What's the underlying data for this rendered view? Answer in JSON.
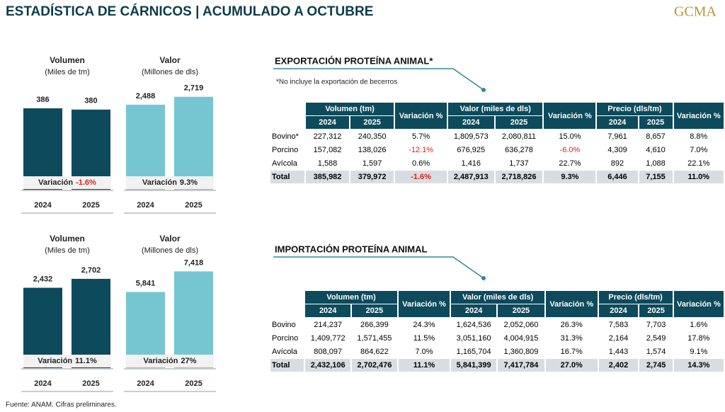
{
  "header": {
    "title": "ESTADÍSTICA DE CÁRNICOS | ACUMULADO A OCTUBRE",
    "logo": "GCMA"
  },
  "chart_data": [
    {
      "type": "bar",
      "title": "Volumen",
      "subtitle": "(Miles de tm)",
      "categories": [
        "2024",
        "2025"
      ],
      "values": [
        386,
        380
      ],
      "color": "#0d4a5c",
      "ylim": [
        0,
        470
      ],
      "note_label": "Variación",
      "note_value": "-1.6%"
    },
    {
      "type": "bar",
      "title": "Valor",
      "subtitle": "(Millones de dls)",
      "categories": [
        "2024",
        "2025"
      ],
      "values": [
        2488,
        2719
      ],
      "value_labels": [
        "2,488",
        "2,719"
      ],
      "color": "#76c6d1",
      "ylim": [
        0,
        2900
      ],
      "note_label": "Variación",
      "note_value": "9.3%"
    },
    {
      "type": "bar",
      "title": "Volumen",
      "subtitle": "(Miles de tm)",
      "categories": [
        "2024",
        "2025"
      ],
      "values": [
        2432,
        2702
      ],
      "value_labels": [
        "2,432",
        "2,702"
      ],
      "color": "#0d4a5c",
      "ylim": [
        0,
        3000
      ],
      "note_label": "Variación",
      "note_value": "11.1%"
    },
    {
      "type": "bar",
      "title": "Valor",
      "subtitle": "(Millones de dls)",
      "categories": [
        "2024",
        "2025"
      ],
      "values": [
        5841,
        7418
      ],
      "value_labels": [
        "5,841",
        "7,418"
      ],
      "color": "#76c6d1",
      "ylim": [
        0,
        7600
      ],
      "note_label": "Variación",
      "note_value": "27%"
    }
  ],
  "tables": [
    {
      "title": "EXPORTACIÓN PROTEÍNA ANIMAL*",
      "note": "*No incluye la exportación de becerros",
      "groups": [
        "Volumen (tm)",
        "Variación %",
        "Valor (miles de dls)",
        "Variación %",
        "Precio (dls/tm)",
        "Variación %"
      ],
      "years": [
        "2024",
        "2025"
      ],
      "rows": [
        [
          "Bovino*",
          "227,312",
          "240,350",
          "5.7%",
          "1,809,573",
          "2,080,811",
          "15.0%",
          "7,961",
          "8,657",
          "8.8%"
        ],
        [
          "Porcino",
          "157,082",
          "138,026",
          "-12.1%",
          "676,925",
          "636,278",
          "-6.0%",
          "4,309",
          "4,610",
          "7.0%"
        ],
        [
          "Avícola",
          "1,588",
          "1,597",
          "0.6%",
          "1,416",
          "1,737",
          "22.7%",
          "892",
          "1,088",
          "22.1%"
        ],
        [
          "Total",
          "385,982",
          "379,972",
          "-1.6%",
          "2,487,913",
          "2,718,826",
          "9.3%",
          "6,446",
          "7,155",
          "11.0%"
        ]
      ]
    },
    {
      "title": "IMPORTACIÓN PROTEÍNA ANIMAL",
      "groups": [
        "Volumen (tm)",
        "Variación %",
        "Valor (miles de dls)",
        "Variación %",
        "Precio (dls/tm)",
        "Variación %"
      ],
      "years": [
        "2024",
        "2025"
      ],
      "rows": [
        [
          "Bovino",
          "214,237",
          "266,399",
          "24.3%",
          "1,624,536",
          "2,052,060",
          "26.3%",
          "7,583",
          "7,703",
          "1.6%"
        ],
        [
          "Porcino",
          "1,409,772",
          "1,571,455",
          "11.5%",
          "3,051,160",
          "4,004,915",
          "31.3%",
          "2,164",
          "2,549",
          "17.8%"
        ],
        [
          "Avícola",
          "808,097",
          "864,622",
          "7.0%",
          "1,165,704",
          "1,360,809",
          "16.7%",
          "1,443",
          "1,574",
          "9.1%"
        ],
        [
          "Total",
          "2,432,106",
          "2,702,476",
          "11.1%",
          "5,841,399",
          "7,417,784",
          "27.0%",
          "2,402",
          "2,745",
          "14.3%"
        ]
      ]
    }
  ],
  "footer": "Fuente: ANAM. Cifras preliminares."
}
